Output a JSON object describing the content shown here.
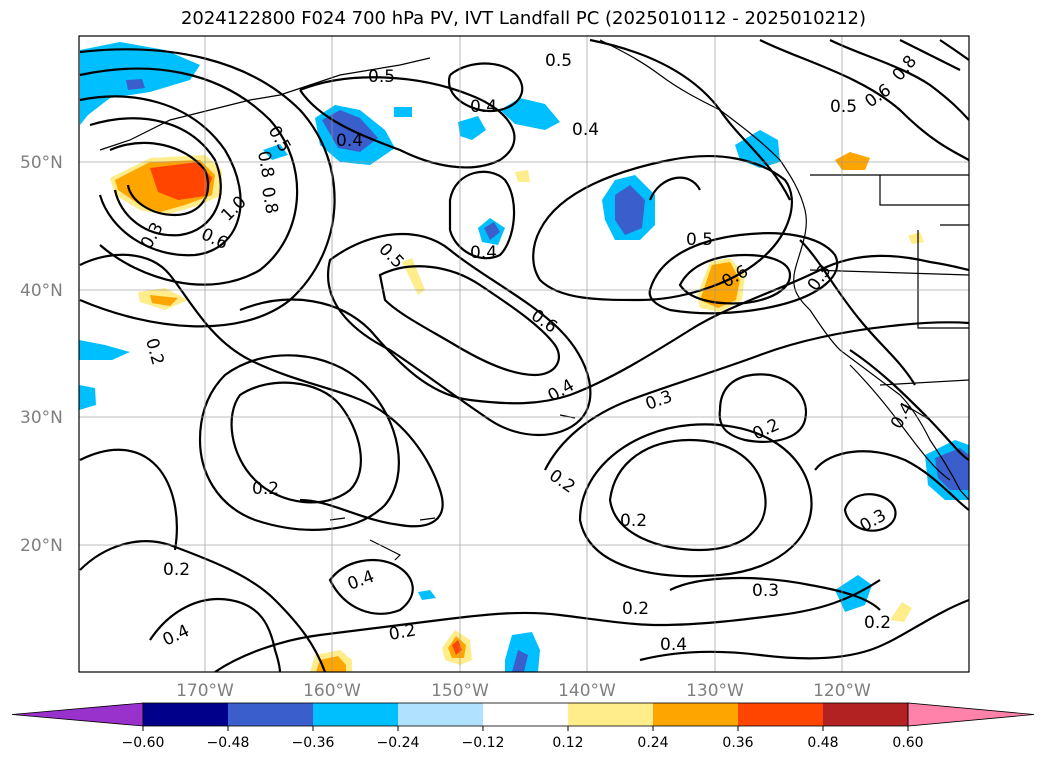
{
  "title": "2024122800 F024 700 hPa PV, IVT Landfall PC (2025010112 - 2025010212)",
  "map": {
    "lat_labels": [
      "50°N",
      "40°N",
      "30°N",
      "20°N"
    ],
    "lon_labels": [
      "170°W",
      "160°W",
      "150°W",
      "140°W",
      "130°W",
      "120°W"
    ],
    "contour_labels": [
      "0.5",
      "0.5",
      "0.4",
      "0.4",
      "0.5",
      "0.4",
      "0.8",
      "0.6",
      "0.8",
      "0.5",
      "0.8",
      "1.0",
      "0.6",
      "0.3",
      "0.5",
      "0.4",
      "0.5",
      "0.6",
      "0.3",
      "0.2",
      "0.6",
      "0.4",
      "0.3",
      "0.2",
      "0.4",
      "0.2",
      "0.2",
      "0.2",
      "0.3",
      "0.2",
      "0.4",
      "0.3",
      "0.2",
      "0.4",
      "0.2",
      "0.2",
      "0.4"
    ]
  },
  "colorbar": {
    "ticks": [
      "−0.60",
      "−0.48",
      "−0.36",
      "−0.24",
      "−0.12",
      "0.12",
      "0.24",
      "0.36",
      "0.48",
      "0.60"
    ],
    "colors": [
      "#9932cc",
      "#00008b",
      "#3a5fcd",
      "#00bfff",
      "#b0e2ff",
      "#ffffff",
      "#ffec8b",
      "#ffa500",
      "#ff4500",
      "#b22222",
      "#ff82ab"
    ]
  }
}
